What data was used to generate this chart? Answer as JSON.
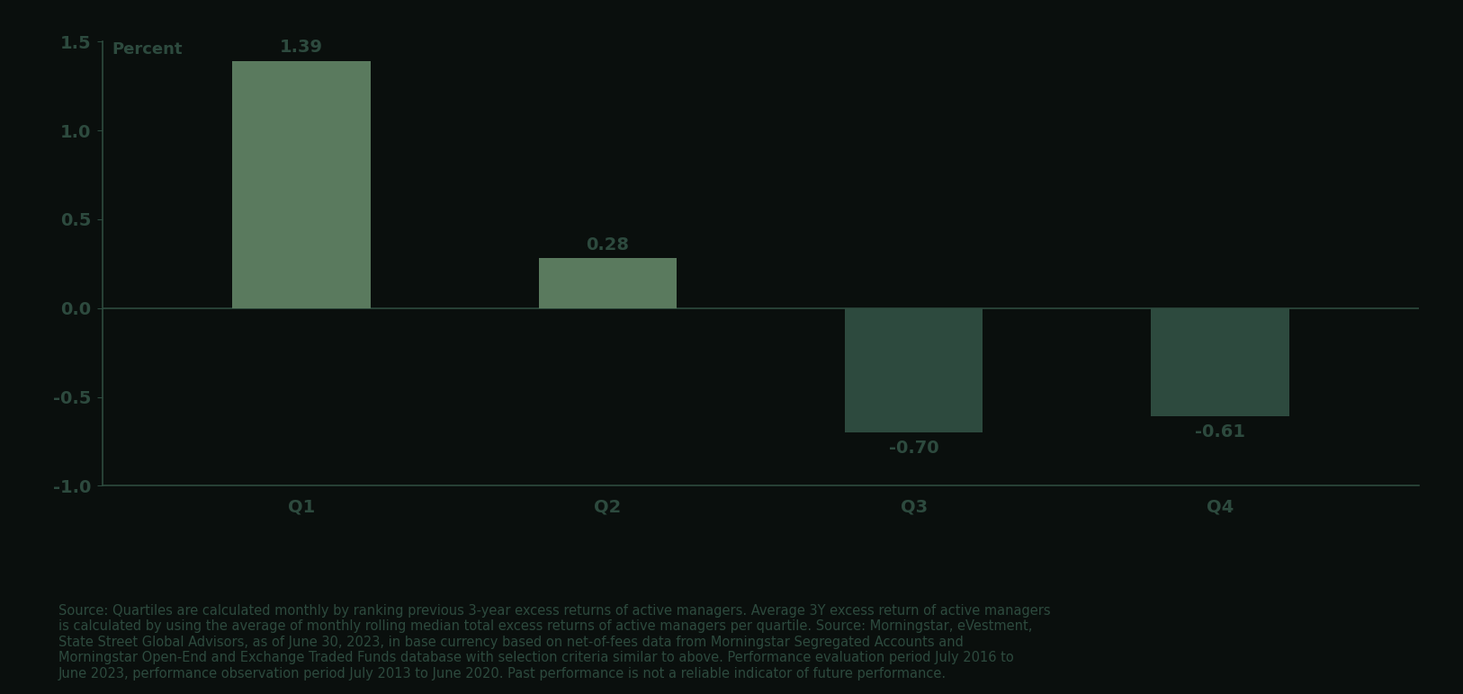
{
  "categories": [
    "Q1",
    "Q2",
    "Q3",
    "Q4"
  ],
  "values": [
    1.39,
    0.28,
    -0.7,
    -0.61
  ],
  "positive_color": "#5a7a5e",
  "negative_color": "#2d4a3e",
  "ylabel": "Percent",
  "ylim": [
    -1.0,
    1.5
  ],
  "yticks": [
    -1.0,
    -0.5,
    0.0,
    0.5,
    1.0,
    1.5
  ],
  "background_color": "#0a0f0d",
  "text_color": "#2d4a3e",
  "bar_width": 0.45,
  "tick_fontsize": 14,
  "ylabel_fontsize": 13,
  "value_label_fontsize": 14,
  "footnote": "Source: Quartiles are calculated monthly by ranking previous 3-year excess returns of active managers. Average 3Y excess return of active managers\nis calculated by using the average of monthly rolling median total excess returns of active managers per quartile. Source: Morningstar, eVestment,\nState Street Global Advisors, as of June 30, 2023, in base currency based on net-of-fees data from Morningstar Segregated Accounts and\nMorningstar Open-End and Exchange Traded Funds database with selection criteria similar to above. Performance evaluation period July 2016 to\nJune 2023, performance observation period July 2013 to June 2020. Past performance is not a reliable indicator of future performance.",
  "footnote_fontsize": 10.5
}
